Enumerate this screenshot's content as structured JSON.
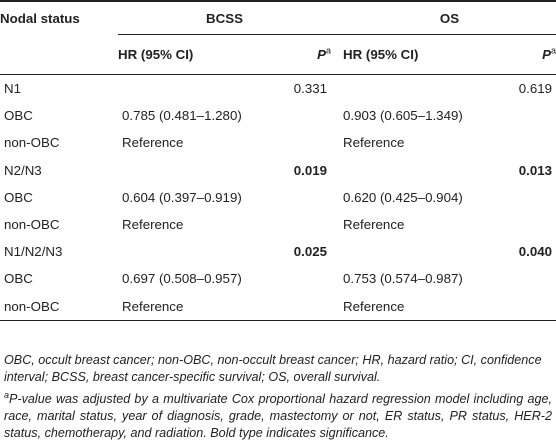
{
  "table": {
    "header": {
      "nodal_status": "Nodal status",
      "bcss": "BCSS",
      "os": "OS",
      "hr_label": "HR (95% CI)",
      "p_label": "P",
      "p_sup": "a"
    },
    "rows": [
      {
        "label": "N1",
        "bcss_hr": "",
        "bcss_p": "0.331",
        "os_hr": "",
        "os_p": "0.619",
        "bold_p": false
      },
      {
        "label": "OBC",
        "bcss_hr": "0.785 (0.481–1.280)",
        "bcss_p": "",
        "os_hr": "0.903 (0.605–1.349)",
        "os_p": "",
        "bold_p": false
      },
      {
        "label": "non-OBC",
        "bcss_hr": "Reference",
        "bcss_p": "",
        "os_hr": "Reference",
        "os_p": "",
        "bold_p": false
      },
      {
        "label": "N2/N3",
        "bcss_hr": "",
        "bcss_p": "0.019",
        "os_hr": "",
        "os_p": "0.013",
        "bold_p": true
      },
      {
        "label": "OBC",
        "bcss_hr": "0.604 (0.397–0.919)",
        "bcss_p": "",
        "os_hr": "0.620 (0.425–0.904)",
        "os_p": "",
        "bold_p": false
      },
      {
        "label": "non-OBC",
        "bcss_hr": "Reference",
        "bcss_p": "",
        "os_hr": "Reference",
        "os_p": "",
        "bold_p": false
      },
      {
        "label": "N1/N2/N3",
        "bcss_hr": "",
        "bcss_p": "0.025",
        "os_hr": "",
        "os_p": "0.040",
        "bold_p": true
      },
      {
        "label": "OBC",
        "bcss_hr": "0.697 (0.508–0.957)",
        "bcss_p": "",
        "os_hr": "0.753 (0.574–0.987)",
        "os_p": "",
        "bold_p": false
      },
      {
        "label": "non-OBC",
        "bcss_hr": "Reference",
        "bcss_p": "",
        "os_hr": "Reference",
        "os_p": "",
        "bold_p": false
      }
    ]
  },
  "footnotes": {
    "abbreviations": "OBC, occult breast cancer; non-OBC, non-occult breast cancer; HR, hazard ratio; CI, confidence interval; BCSS, breast cancer-specific survival; OS, overall survival.",
    "note_marker": "a",
    "note_text": "P-value was adjusted by a multivariate Cox proportional hazard regression model including age, race, marital status, year of diagnosis, grade, mastectomy or not, ER status, PR status, HER-2 status, chemotherapy, and radiation. Bold type indicates significance."
  }
}
